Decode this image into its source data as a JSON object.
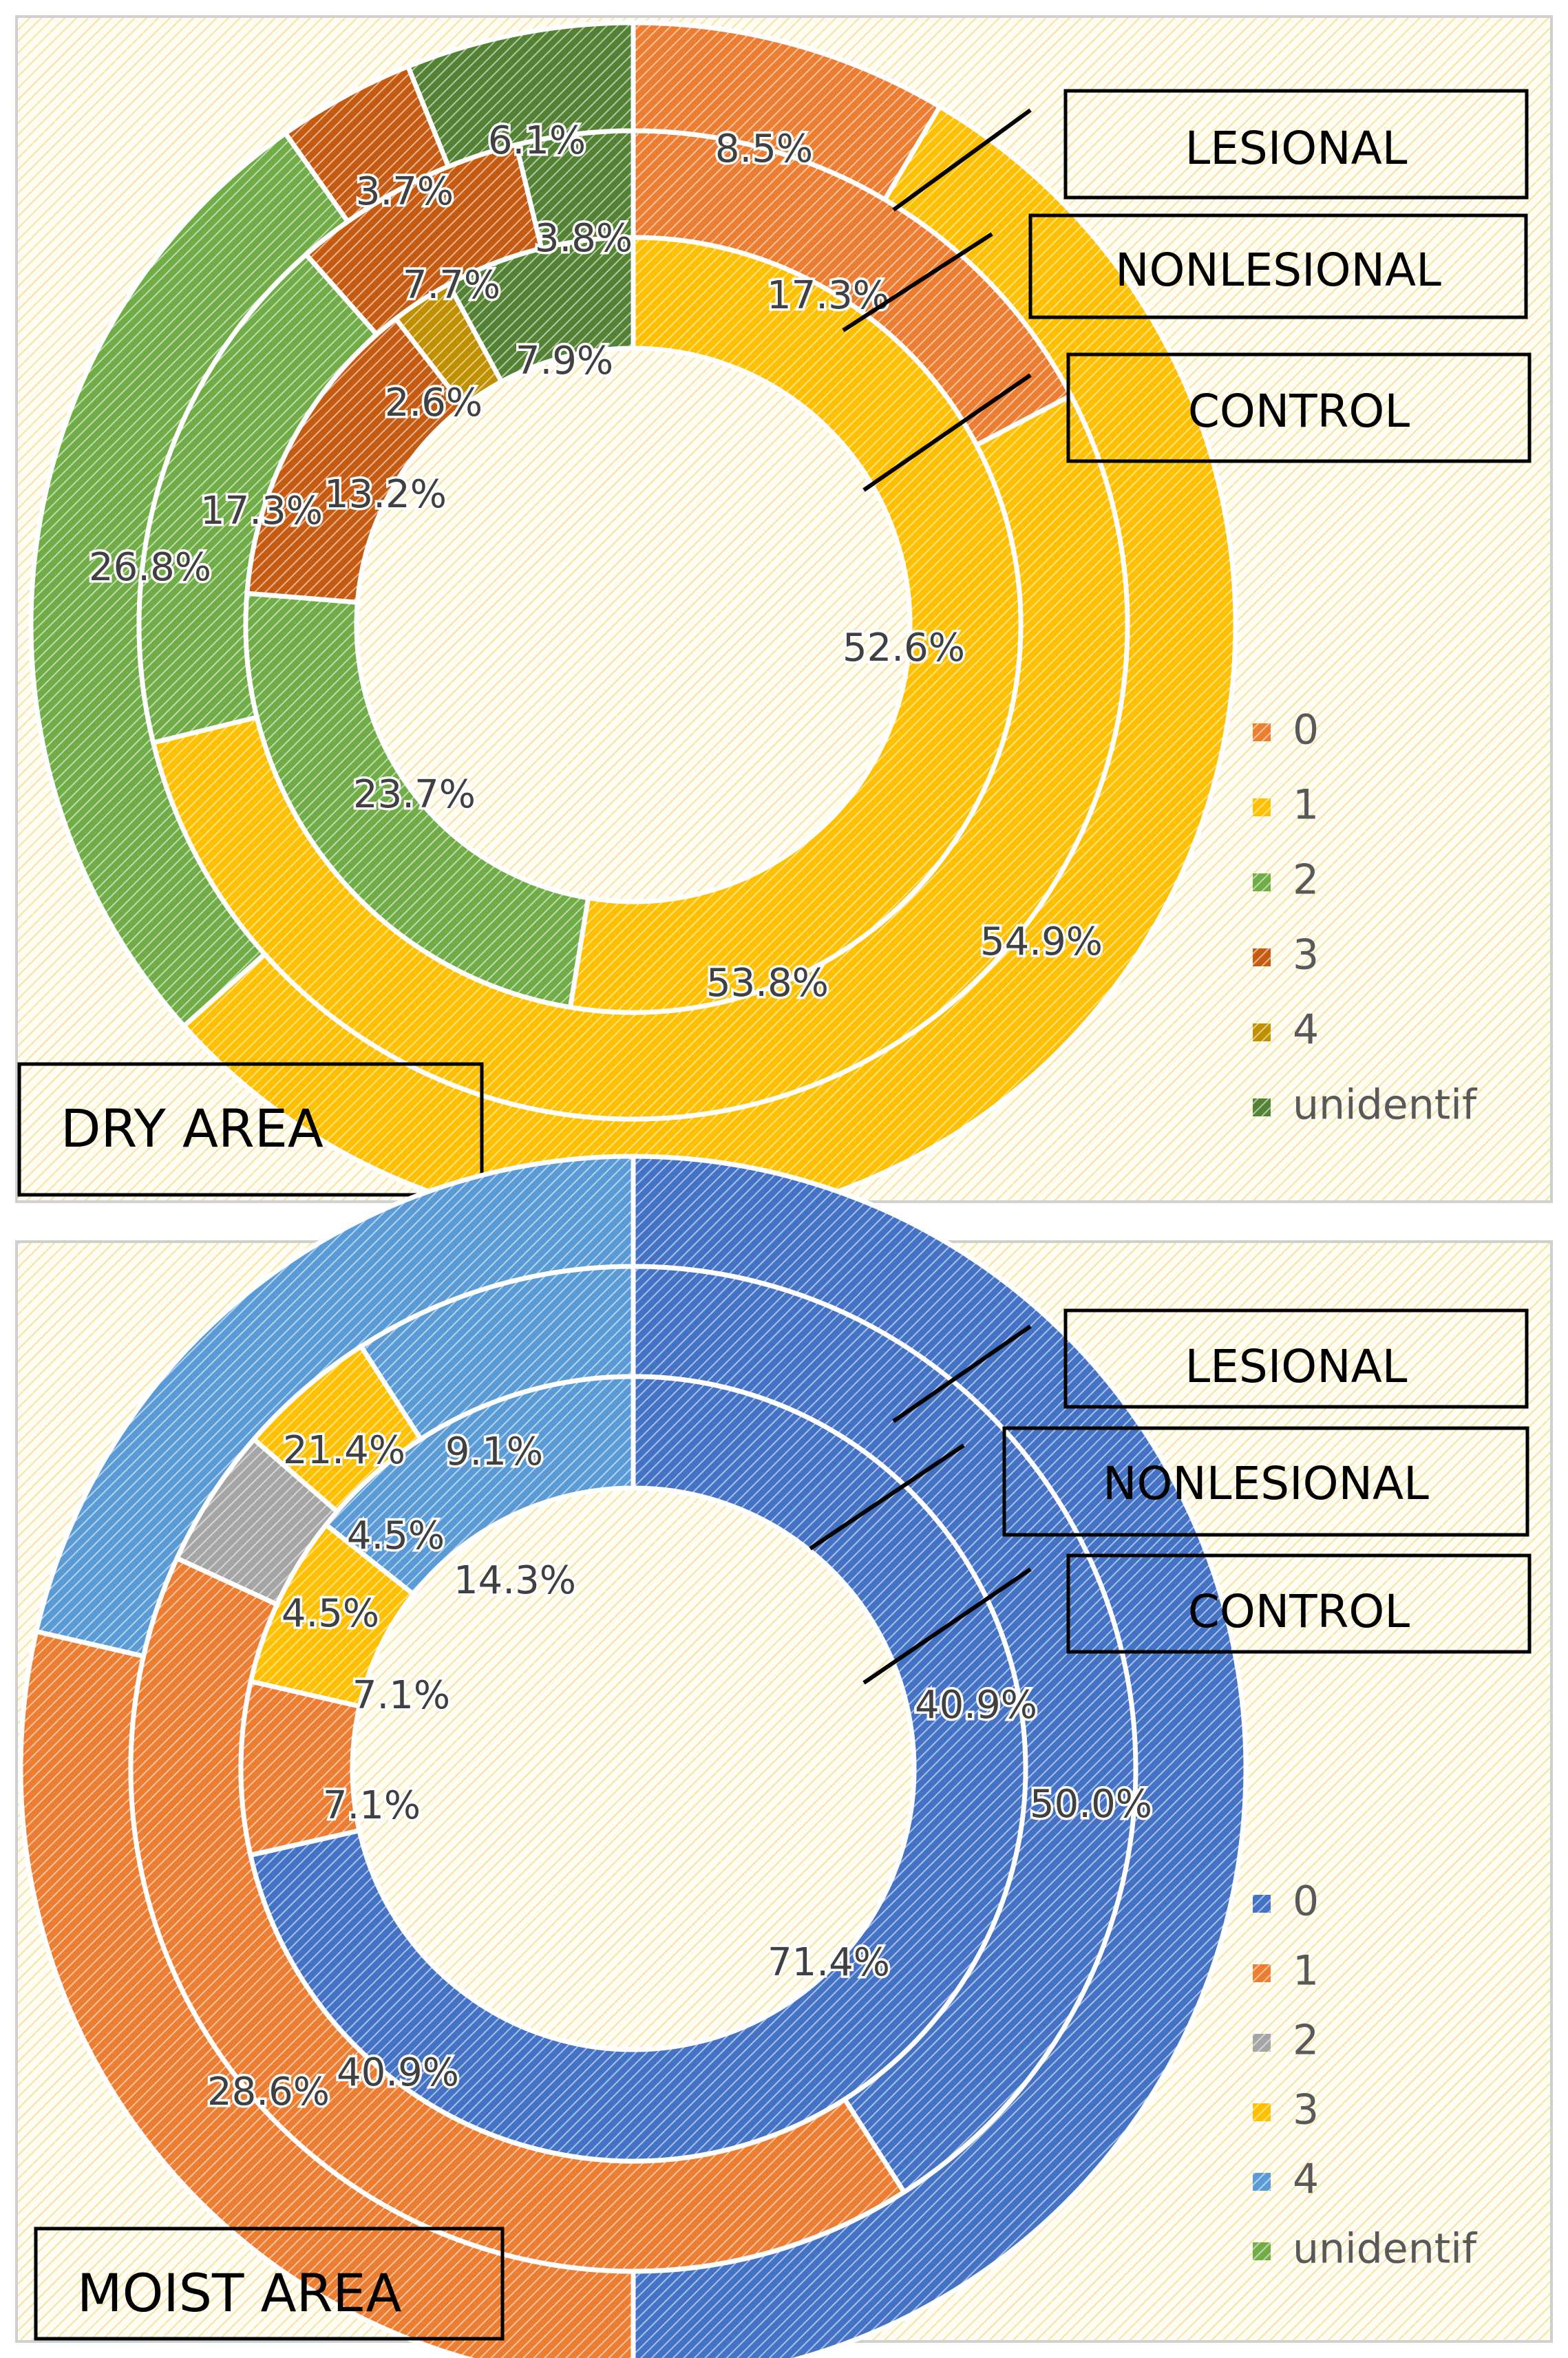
{
  "chart_data": [
    {
      "type": "pie",
      "variant": "multi-ring doughnut",
      "title": "DRY AREA",
      "categories": [
        "0",
        "1",
        "2",
        "3",
        "4",
        "unidentif"
      ],
      "colors": [
        "#ED7D31",
        "#FFC000",
        "#70AD47",
        "#C55A11",
        "#BF9000",
        "#548235"
      ],
      "rings": [
        {
          "name": "LESIONAL",
          "values": [
            8.5,
            54.9,
            26.8,
            3.7,
            0,
            6.1
          ],
          "labels": [
            "8.5%",
            "54.9%",
            "26.8%",
            "3.7%",
            "",
            "6.1%"
          ]
        },
        {
          "name": "NONLESIONAL",
          "values": [
            17.3,
            53.8,
            17.3,
            7.7,
            0,
            3.8
          ],
          "labels": [
            "17.3%",
            "53.8%",
            "17.3%",
            "7.7%",
            "",
            "3.8%"
          ]
        },
        {
          "name": "CONTROL",
          "values": [
            0,
            52.6,
            23.7,
            13.2,
            2.6,
            7.9
          ],
          "labels": [
            "",
            "52.6%",
            "23.7%",
            "13.2%",
            "2.6%",
            "7.9%"
          ]
        }
      ],
      "ring_labels": [
        "LESIONAL",
        "NONLESIONAL",
        "CONTROL"
      ],
      "legend": [
        "0",
        "1",
        "2",
        "3",
        "4",
        "unidentif"
      ],
      "legend_position": "right"
    },
    {
      "type": "pie",
      "variant": "multi-ring doughnut",
      "title": "MOIST AREA",
      "categories": [
        "0",
        "1",
        "2",
        "3",
        "4",
        "unidentif"
      ],
      "colors": [
        "#4472C4",
        "#ED7D31",
        "#A5A5A5",
        "#FFC000",
        "#5B9BD5",
        "#70AD47"
      ],
      "rings": [
        {
          "name": "LESIONAL",
          "values": [
            50.0,
            28.6,
            0,
            0,
            21.4,
            0
          ],
          "labels": [
            "50.0%",
            "28.6%",
            "",
            "",
            "21.4%",
            ""
          ]
        },
        {
          "name": "NONLESIONAL",
          "values": [
            40.9,
            40.9,
            4.5,
            4.5,
            9.1,
            0
          ],
          "labels": [
            "40.9%",
            "40.9%",
            "4.5%",
            "4.5%",
            "9.1%",
            ""
          ]
        },
        {
          "name": "CONTROL",
          "values": [
            71.4,
            7.1,
            0,
            7.1,
            14.3,
            0
          ],
          "labels": [
            "71.4%",
            "7.1%",
            "",
            "7.1%",
            "14.3%",
            ""
          ]
        }
      ],
      "ring_labels": [
        "LESIONAL",
        "NONLESIONAL",
        "CONTROL"
      ],
      "legend": [
        "0",
        "1",
        "2",
        "3",
        "4",
        "unidentif"
      ],
      "legend_position": "right"
    }
  ]
}
